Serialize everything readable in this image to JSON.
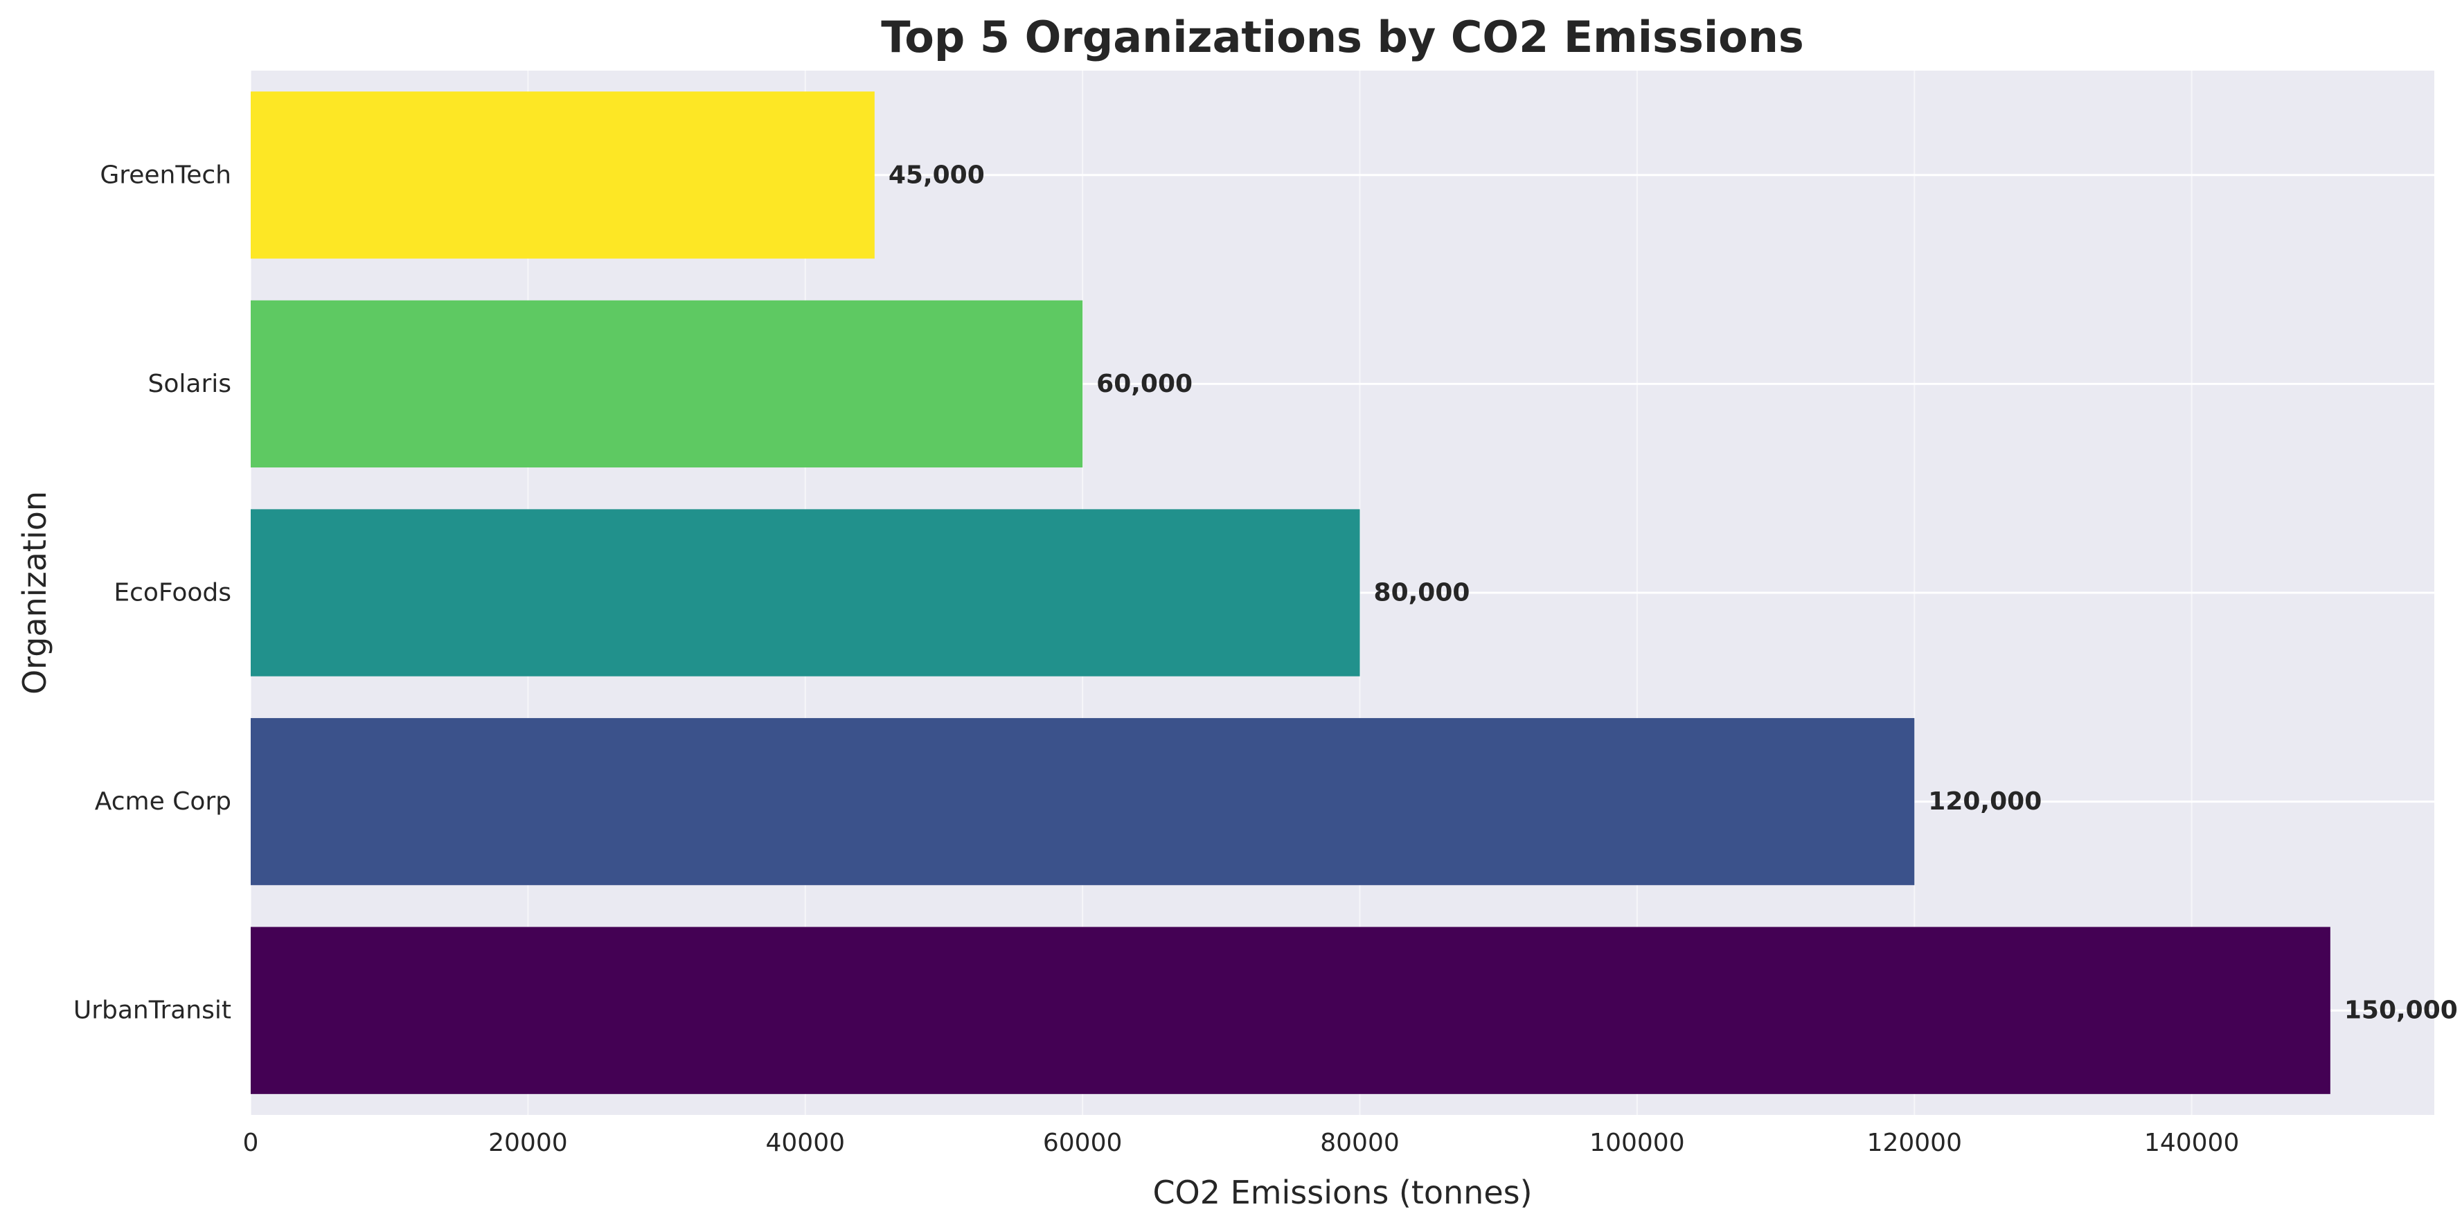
{
  "chart_data": {
    "type": "bar",
    "orientation": "horizontal",
    "title": "Top 5 Organizations by CO2 Emissions",
    "xlabel": "CO2 Emissions (tonnes)",
    "ylabel": "Organization",
    "categories": [
      "UrbanTransit",
      "Acme Corp",
      "EcoFoods",
      "Solaris",
      "GreenTech"
    ],
    "values": [
      150000,
      120000,
      80000,
      60000,
      45000
    ],
    "data_labels": [
      "150,000",
      "120,000",
      "80,000",
      "60,000",
      "45,000"
    ],
    "colors": [
      "#440154",
      "#3b528b",
      "#21918c",
      "#5ec962",
      "#fde725"
    ],
    "xlim": [
      0,
      157500
    ],
    "xticks": [
      0,
      20000,
      40000,
      60000,
      80000,
      100000,
      120000,
      140000
    ],
    "xtick_labels": [
      "0",
      "20000",
      "40000",
      "60000",
      "80000",
      "100000",
      "120000",
      "140000"
    ],
    "grid": true,
    "background": "#eaeaf2",
    "grid_color": "#ffffff"
  }
}
